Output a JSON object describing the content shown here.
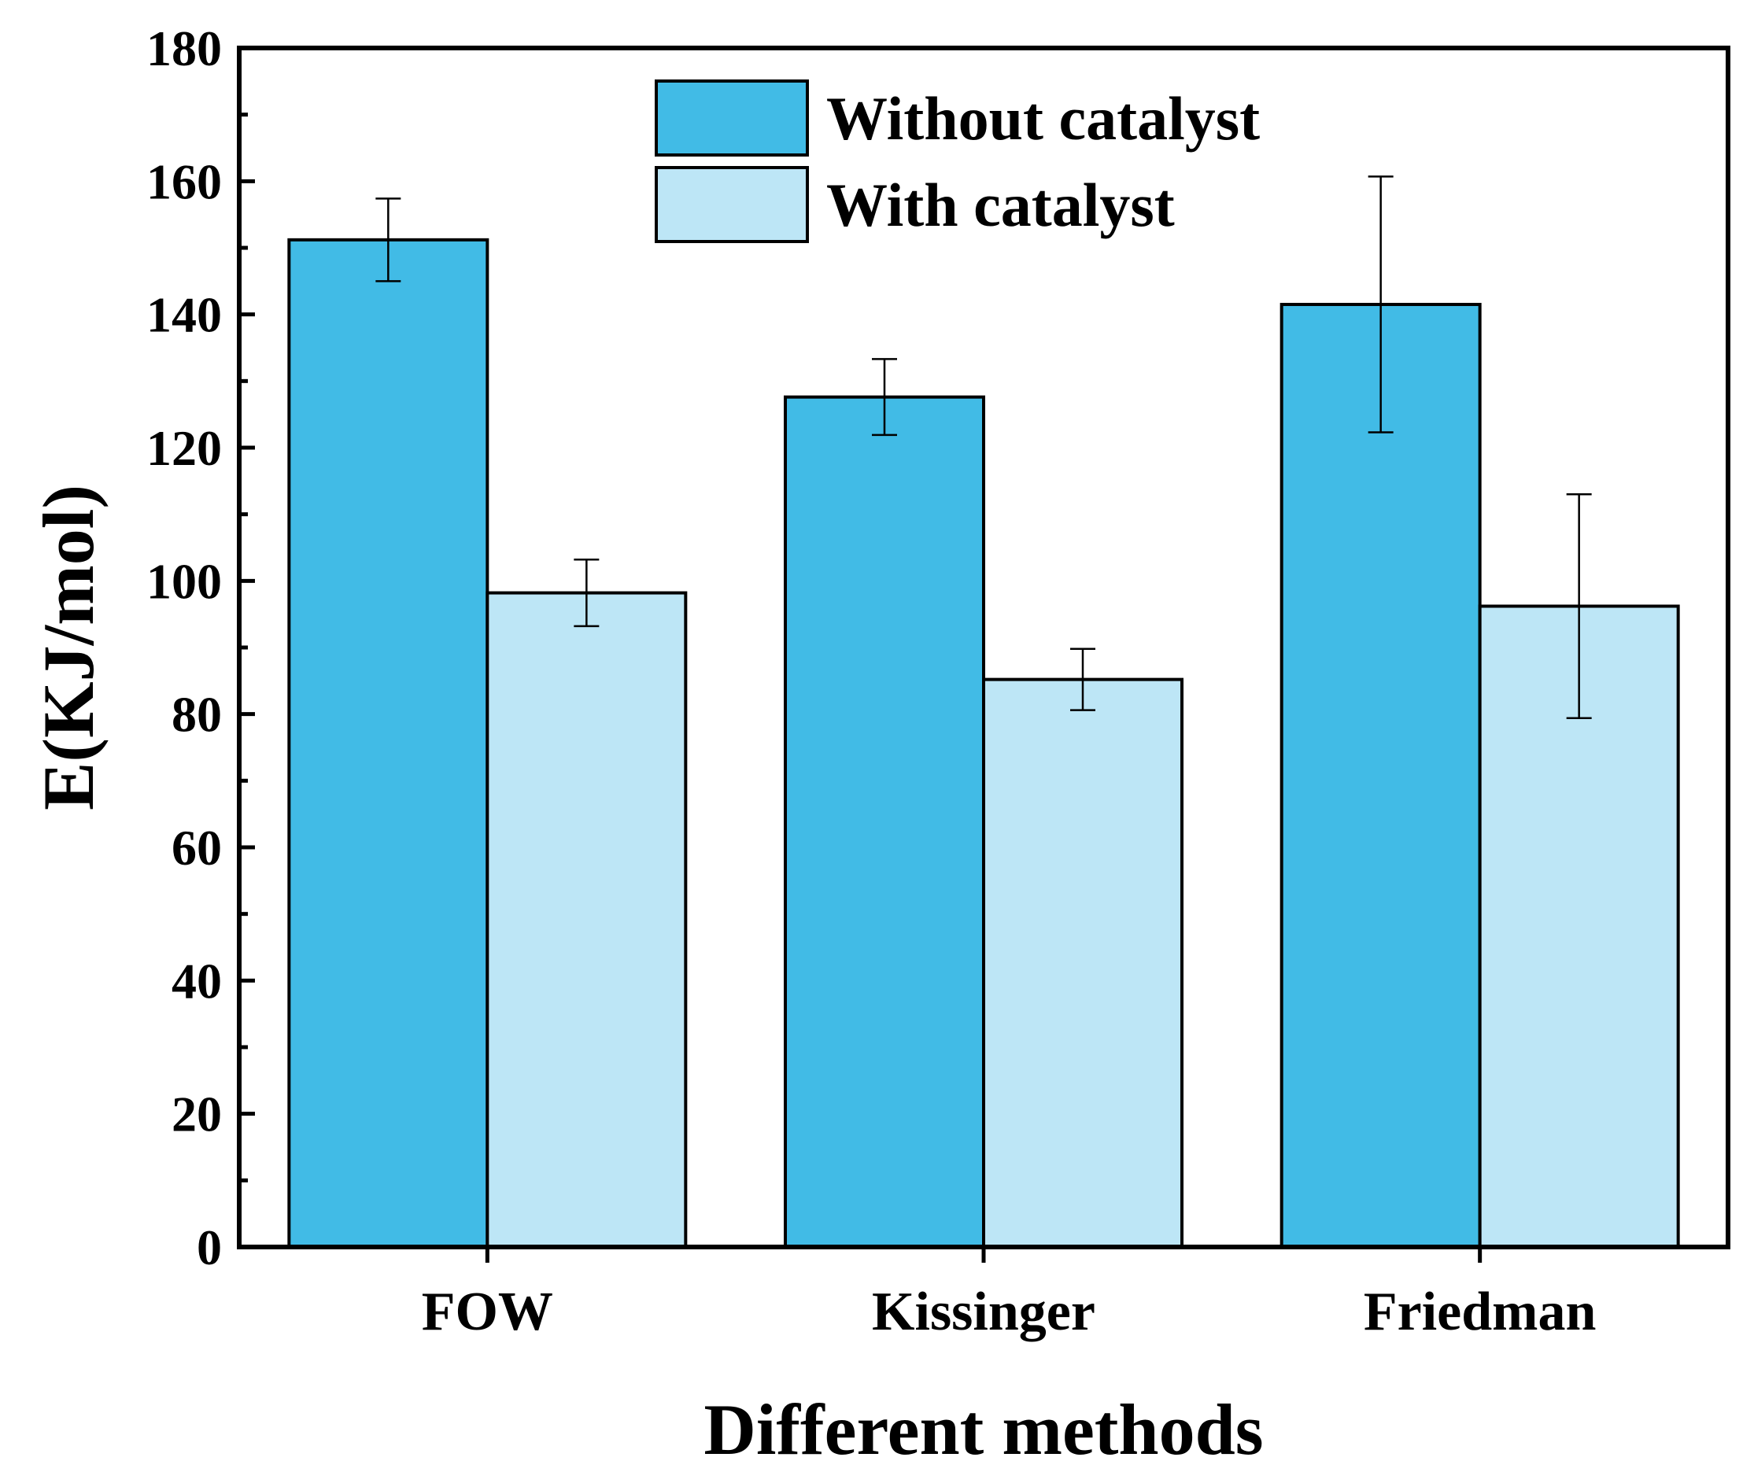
{
  "chart_data": {
    "type": "bar",
    "title": "",
    "xlabel": "Different methods",
    "ylabel": "E(KJ/mol)",
    "ylim": [
      0,
      180
    ],
    "yticks": [
      0,
      20,
      40,
      60,
      80,
      100,
      120,
      140,
      160,
      180
    ],
    "categories": [
      "FOW",
      "Kissinger",
      "Friedman"
    ],
    "series": [
      {
        "name": "Without catalyst",
        "color": "#41BBE6",
        "values": [
          151.2,
          127.6,
          141.5
        ],
        "errors": [
          6.2,
          5.7,
          19.2
        ]
      },
      {
        "name": "With catalyst",
        "color": "#BDE6F6",
        "values": [
          98.2,
          85.2,
          96.2
        ],
        "errors": [
          5.0,
          4.6,
          16.8
        ]
      }
    ],
    "legend_position": "top-center",
    "grid": false
  }
}
